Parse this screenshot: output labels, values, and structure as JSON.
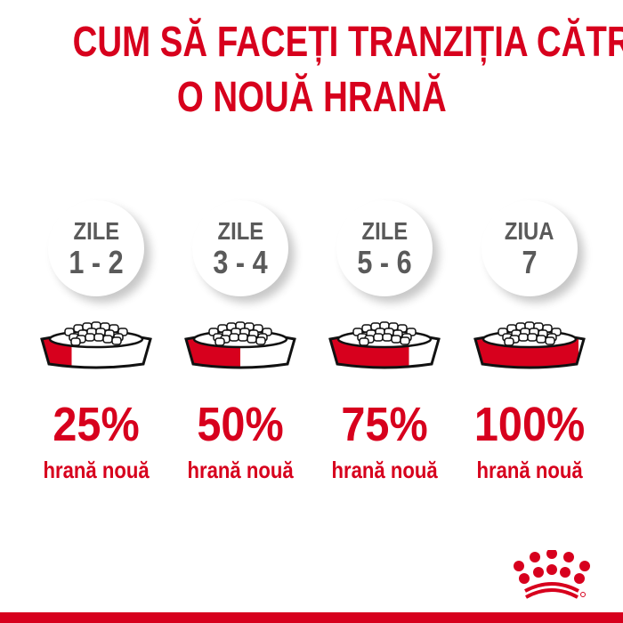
{
  "title": {
    "line1": "CUM SĂ FACEȚI TRANZIȚIA CĂTRE",
    "line2": "O NOUĂ HRANĂ"
  },
  "steps": [
    {
      "label": "ZILE",
      "days": "1 - 2",
      "percent": "25%",
      "caption": "hrană nouă",
      "new_food_fraction": 0.25
    },
    {
      "label": "ZILE",
      "days": "3 - 4",
      "percent": "50%",
      "caption": "hrană nouă",
      "new_food_fraction": 0.5
    },
    {
      "label": "ZILE",
      "days": "5 - 6",
      "percent": "75%",
      "caption": "hrană nouă",
      "new_food_fraction": 0.75
    },
    {
      "label": "ZIUA",
      "days": "7",
      "percent": "100%",
      "caption": "hrană nouă",
      "new_food_fraction": 1.0
    }
  ],
  "logo": {
    "name": "ROYAL CANIN",
    "icon": "crown-icon"
  },
  "colors": {
    "brand_red": "#d7001d",
    "text_gray": "#5a5a5a"
  }
}
